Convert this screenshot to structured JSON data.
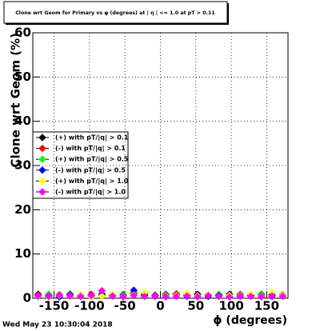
{
  "chart_data": {
    "type": "scatter",
    "title": "Clone wrt Geom for Primary vs φ (degrees) at | η | <= 1.0 at pT > 0.11",
    "x_label": "ϕ (degrees)",
    "y_label": "Clone wrt Geom (%)",
    "timestamp": "Wed May 23 10:30:04 2018",
    "xlim": [
      -180,
      180
    ],
    "xticks": [
      -150,
      -100,
      -50,
      0,
      50,
      100,
      150
    ],
    "ylim": [
      0,
      60
    ],
    "yticks": [
      0,
      10,
      20,
      30,
      40,
      50,
      60
    ],
    "grid": true,
    "legend": "left",
    "x": [
      -172.5,
      -157.5,
      -142.5,
      -127.5,
      -112.5,
      -97.5,
      -82.5,
      -67.5,
      -52.5,
      -37.5,
      -22.5,
      -7.5,
      7.5,
      22.5,
      37.5,
      52.5,
      67.5,
      82.5,
      97.5,
      112.5,
      127.5,
      142.5,
      157.5,
      172.5
    ],
    "series": [
      {
        "name": "(+) with pT/|q| > 0.1",
        "color": "#000000",
        "values": [
          0.9,
          0.8,
          0.7,
          0.9,
          0.8,
          0.6,
          1.0,
          0.8,
          0.9,
          1.2,
          0.8,
          0.7,
          0.9,
          0.8,
          0.6,
          0.9,
          0.7,
          0.8,
          0.9,
          0.8,
          0.7,
          0.9,
          0.8,
          0.6
        ]
      },
      {
        "name": "(-) with pT/|q| > 0.1",
        "color": "#ff0000",
        "values": [
          0.7,
          0.6,
          0.8,
          0.5,
          0.7,
          0.9,
          0.6,
          0.8,
          0.7,
          1.0,
          0.9,
          0.6,
          0.8,
          1.0,
          0.7,
          0.6,
          0.8,
          0.7,
          0.6,
          0.9,
          0.8,
          0.7,
          0.6,
          0.8
        ]
      },
      {
        "name": "(+) with pT/|q| > 0.5",
        "color": "#00ff00",
        "values": [
          0.6,
          0.9,
          0.5,
          0.7,
          0.6,
          0.5,
          0.8,
          0.6,
          0.9,
          1.5,
          1.1,
          0.5,
          0.7,
          0.6,
          0.9,
          0.5,
          0.6,
          0.9,
          0.5,
          0.7,
          0.6,
          0.8,
          0.5,
          0.7
        ]
      },
      {
        "name": "(-) with pT/|q| > 0.5",
        "color": "#0000ff",
        "values": [
          0.4,
          0.5,
          0.3,
          0.6,
          0.4,
          0.5,
          0.7,
          0.5,
          0.6,
          1.8,
          0.6,
          0.4,
          0.5,
          0.6,
          0.4,
          0.5,
          0.4,
          0.6,
          0.5,
          0.4,
          0.6,
          0.5,
          0.4,
          0.5
        ]
      },
      {
        "name": "(+) with pT/|q| > 1.0",
        "color": "#ffff00",
        "values": [
          0.5,
          0.3,
          0.6,
          0.4,
          0.8,
          0.3,
          0.5,
          0.9,
          0.4,
          0.7,
          1.3,
          0.5,
          0.4,
          0.6,
          1.1,
          0.5,
          0.8,
          0.4,
          0.6,
          0.5,
          0.9,
          0.4,
          1.3,
          0.6
        ]
      },
      {
        "name": "(-) with pT/|q| > 1.0",
        "color": "#ff00ff",
        "values": [
          0.6,
          0.4,
          0.7,
          0.5,
          0.4,
          0.6,
          1.7,
          0.5,
          0.3,
          0.6,
          0.4,
          0.5,
          0.3,
          0.4,
          0.5,
          0.3,
          0.6,
          0.4,
          0.3,
          0.5,
          0.4,
          0.3,
          0.5,
          0.4
        ]
      }
    ]
  }
}
